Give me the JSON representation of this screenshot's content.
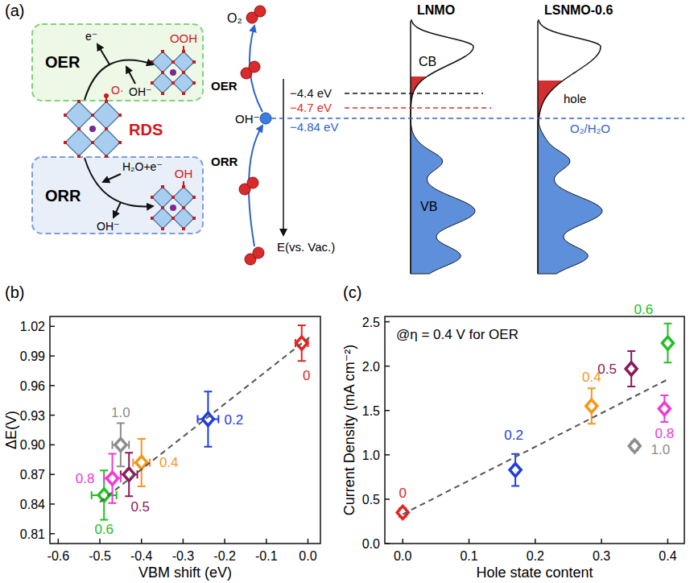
{
  "diagram": {
    "panel_label": "(a)",
    "oer_box": "OER",
    "orr_box": "ORR",
    "oer_electron": "e⁻",
    "oer_reactant": "OH⁻",
    "orr_reactant": "H₂O+e⁻",
    "orr_product": "OH⁻",
    "intermediate": "O·",
    "oer_adsorbate": "OOH",
    "orr_adsorbate": "OH",
    "rds": "RDS",
    "oxygen": "O₂",
    "path_oer": "OER",
    "path_orr": "ORR",
    "hydroxide": "OH⁻",
    "energy_axis": "E(vs. Vac.)",
    "levels": [
      {
        "label": "−4.4 eV",
        "color": "#111111"
      },
      {
        "label": "−4.7 eV",
        "color": "#e0302a"
      },
      {
        "label": "−4.84 eV",
        "color": "#2f62c8"
      }
    ],
    "redox_couple": "O₂/H₂O",
    "dos": [
      {
        "title": "LNMO",
        "cb": "CB",
        "vb": "VB"
      },
      {
        "title": "LSNMO-0.6",
        "hole": "hole"
      }
    ]
  },
  "chart_data": [
    {
      "type": "scatter",
      "panel_label": "(b)",
      "x_label": "VBM shift (eV)",
      "y_label": "ΔE(V)",
      "xlim": [
        -0.62,
        0.03
      ],
      "ylim": [
        0.8,
        1.03
      ],
      "xticks": [
        -0.6,
        -0.5,
        -0.4,
        -0.3,
        -0.2,
        -0.1,
        {
          "value": 0,
          "label": "0.0"
        }
      ],
      "yticks": [
        0.81,
        0.84,
        0.87,
        {
          "value": 0.9,
          "label": "0.90"
        },
        0.93,
        0.96,
        0.99,
        1.02
      ],
      "marker": "diamond",
      "series": [
        {
          "name": "0",
          "color": "#e8231f",
          "x": [
            -0.015
          ],
          "values": [
            1.003
          ],
          "x_error": [
            0.015
          ],
          "y_error": [
            0.018
          ]
        },
        {
          "name": "0.2",
          "color": "#1f3de0",
          "x": [
            -0.24
          ],
          "values": [
            0.926
          ],
          "x_error": [
            0.025
          ],
          "y_error": [
            0.028
          ]
        },
        {
          "name": "0.4",
          "color": "#f5961c",
          "x": [
            -0.4
          ],
          "values": [
            0.882
          ],
          "x_error": [
            0.02
          ],
          "y_error": [
            0.024
          ]
        },
        {
          "name": "0.5",
          "color": "#8a1a5c",
          "x": [
            -0.43
          ],
          "values": [
            0.87
          ],
          "x_error": [
            0.02
          ],
          "y_error": [
            0.022
          ]
        },
        {
          "name": "0.6",
          "color": "#22c022",
          "x": [
            -0.49
          ],
          "values": [
            0.849
          ],
          "x_error": [
            0.03
          ],
          "y_error": [
            0.025
          ]
        },
        {
          "name": "0.8",
          "color": "#f03ad6",
          "x": [
            -0.47
          ],
          "values": [
            0.866
          ],
          "x_error": [
            0.02
          ],
          "y_error": [
            0.025
          ]
        },
        {
          "name": "1.0",
          "color": "#8c8c8c",
          "x": [
            -0.45
          ],
          "values": [
            0.9
          ],
          "x_error": [
            0.02
          ],
          "y_error": [
            0.022
          ]
        },
        {
          "type": "line",
          "line_style": "dashed",
          "color": "#555555",
          "x": [
            -0.5,
            0.01
          ],
          "values": [
            0.842,
            1.011
          ]
        }
      ]
    },
    {
      "type": "scatter",
      "panel_label": "(c)",
      "x_label": "Hole state content",
      "y_label": "Current Density (mA cm⁻²)",
      "annotation": "@η = 0.4 V for OER",
      "xlim": [
        -0.027,
        0.425
      ],
      "ylim": [
        0,
        2.56
      ],
      "xticks": [
        {
          "value": 0,
          "label": "0.0"
        },
        0.1,
        0.2,
        0.3,
        0.4
      ],
      "yticks": [
        {
          "value": 0,
          "label": "0.0"
        },
        0.5,
        {
          "value": 1,
          "label": "1.0"
        },
        1.5,
        {
          "value": 2,
          "label": "2.0"
        },
        2.5
      ],
      "marker": "diamond",
      "series": [
        {
          "name": "0",
          "color": "#e8231f",
          "x": [
            0
          ],
          "values": [
            0.35
          ],
          "y_error": [
            0.05
          ]
        },
        {
          "name": "0.2",
          "color": "#1f3de0",
          "x": [
            0.17
          ],
          "values": [
            0.83
          ],
          "y_error": [
            0.18
          ]
        },
        {
          "name": "0.4",
          "color": "#f5961c",
          "x": [
            0.285
          ],
          "values": [
            1.55
          ],
          "y_error": [
            0.2
          ]
        },
        {
          "name": "0.5",
          "color": "#8a1a5c",
          "x": [
            0.345
          ],
          "values": [
            1.97
          ],
          "y_error": [
            0.2
          ]
        },
        {
          "name": "0.6",
          "color": "#22c022",
          "x": [
            0.4
          ],
          "values": [
            2.26
          ],
          "y_error": [
            0.22
          ]
        },
        {
          "name": "0.8",
          "color": "#f03ad6",
          "x": [
            0.395
          ],
          "values": [
            1.52
          ],
          "y_error": [
            0.15
          ]
        },
        {
          "name": "1.0",
          "color": "#8c8c8c",
          "x": [
            0.35
          ],
          "values": [
            1.1
          ],
          "y_error": [
            0.05
          ]
        },
        {
          "type": "line",
          "line_style": "dashed",
          "color": "#555555",
          "x": [
            0,
            0.4
          ],
          "values": [
            0.33,
            1.85
          ]
        }
      ]
    }
  ]
}
